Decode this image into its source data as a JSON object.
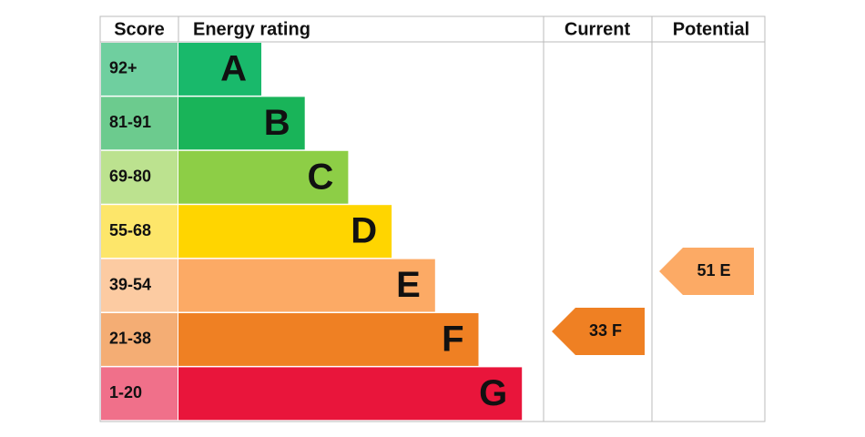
{
  "header": {
    "score": "Score",
    "energy_rating": "Energy rating",
    "current": "Current",
    "potential": "Potential"
  },
  "bands": [
    {
      "score": "92+",
      "rating": "A",
      "color": "#19b96b",
      "tint": "#6fcf9f"
    },
    {
      "score": "81-91",
      "rating": "B",
      "color": "#19b459",
      "tint": "#6ccb8e"
    },
    {
      "score": "69-80",
      "rating": "C",
      "color": "#8dce46",
      "tint": "#bce28f"
    },
    {
      "score": "55-68",
      "rating": "D",
      "color": "#ffd500",
      "tint": "#fde66a"
    },
    {
      "score": "39-54",
      "rating": "E",
      "color": "#fcaa65",
      "tint": "#fccba2"
    },
    {
      "score": "21-38",
      "rating": "F",
      "color": "#ef8023",
      "tint": "#f4ad74"
    },
    {
      "score": "1-20",
      "rating": "G",
      "color": "#e9153b",
      "tint": "#f0708a"
    }
  ],
  "current": {
    "label": "33 F",
    "color": "#ef8023"
  },
  "potential": {
    "label": "51 E",
    "color": "#fcaa65"
  }
}
